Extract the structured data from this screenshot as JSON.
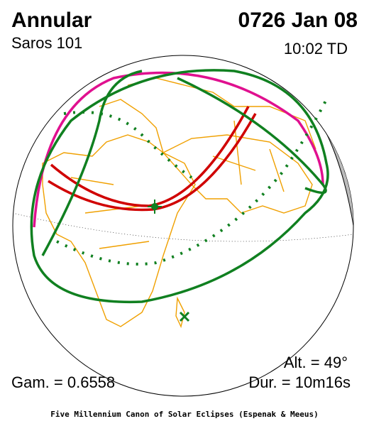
{
  "header": {
    "eclipse_type": "Annular",
    "date": "0726 Jan 08",
    "saros": "Saros 101",
    "time": "10:02 TD"
  },
  "footer": {
    "altitude": "Alt. = 49°",
    "gamma": "Gam. = 0.6558",
    "duration": "Dur. = 10m16s",
    "credit": "Five Millennium Canon of Solar Eclipses (Espenak & Meeus)"
  }
}
